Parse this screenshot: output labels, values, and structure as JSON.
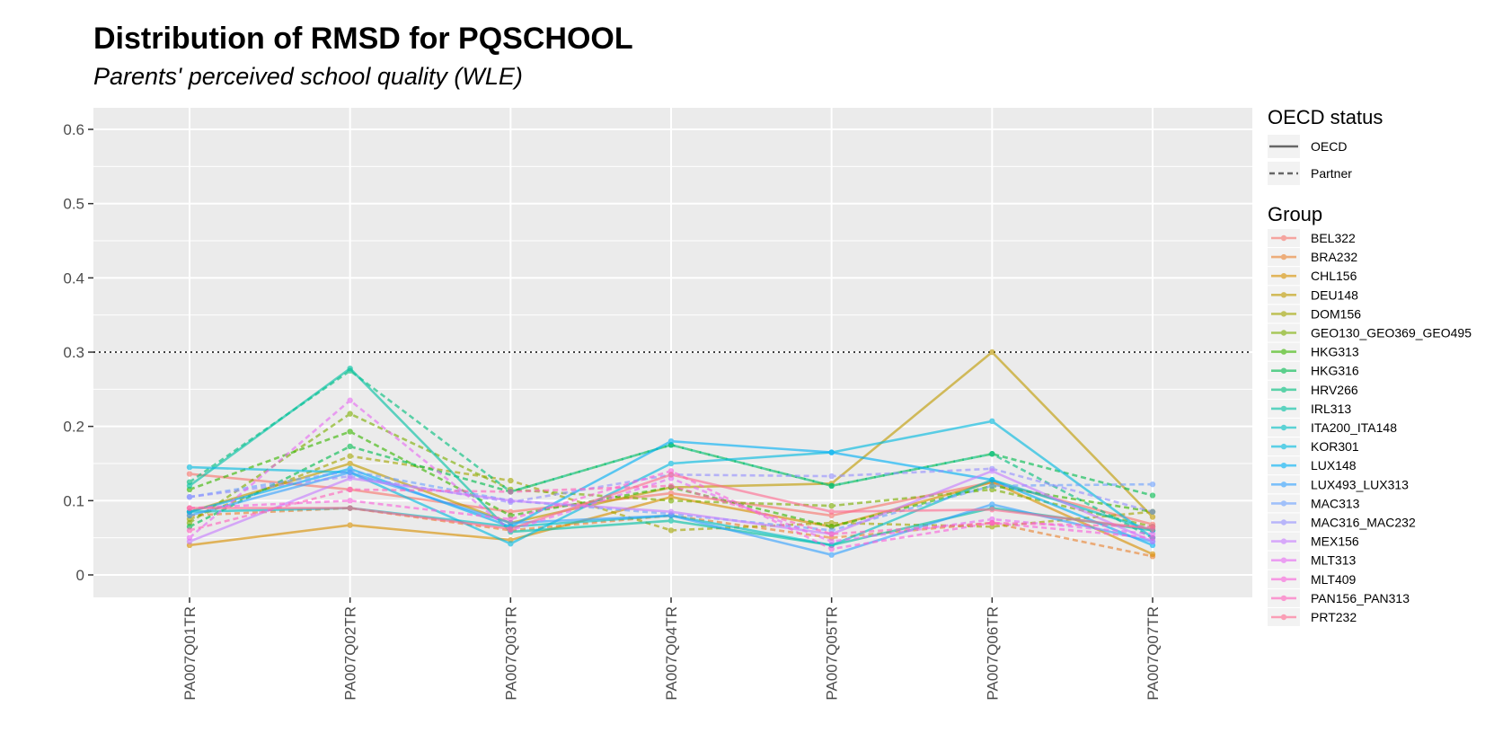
{
  "title": "Distribution of RMSD for PQSCHOOL",
  "subtitle": "Parents' perceived school quality (WLE)",
  "legend": {
    "status_title": "OECD status",
    "status_items": [
      {
        "label": "OECD",
        "dash": "solid"
      },
      {
        "label": "Partner",
        "dash": "dashed"
      }
    ],
    "group_title": "Group"
  },
  "chart_data": {
    "type": "line",
    "title": "Distribution of RMSD for PQSCHOOL",
    "subtitle": "Parents' perceived school quality (WLE)",
    "xlabel": "",
    "ylabel": "",
    "categories": [
      "PA007Q01TR",
      "PA007Q02TR",
      "PA007Q03TR",
      "PA007Q04TR",
      "PA007Q05TR",
      "PA007Q06TR",
      "PA007Q07TR"
    ],
    "ylim": [
      -0.03,
      0.63
    ],
    "yticks": [
      0,
      0.1,
      0.2,
      0.3,
      0.4,
      0.5,
      0.6
    ],
    "ytick_labels": [
      "0",
      "0.1",
      "0.2",
      "0.3",
      "0.4",
      "0.5",
      "0.6"
    ],
    "reference_line": {
      "y": 0.3,
      "style": "dotted"
    },
    "grid": true,
    "legend_position": "right",
    "series": [
      {
        "name": "BEL322",
        "status": "OECD",
        "color": "#F8766D",
        "values": [
          0.136,
          0.115,
          0.085,
          0.11,
          0.08,
          0.125,
          0.068
        ]
      },
      {
        "name": "BRA232",
        "status": "Partner",
        "color": "#EA8331",
        "values": [
          0.08,
          0.09,
          0.06,
          0.08,
          0.05,
          0.07,
          0.025
        ]
      },
      {
        "name": "CHL156",
        "status": "OECD",
        "color": "#D89000",
        "values": [
          0.04,
          0.067,
          0.047,
          0.105,
          0.065,
          0.125,
          0.028
        ]
      },
      {
        "name": "DEU148",
        "status": "OECD",
        "color": "#C09B00",
        "values": [
          0.085,
          0.15,
          0.07,
          0.118,
          0.123,
          0.3,
          0.078
        ]
      },
      {
        "name": "DOM156",
        "status": "Partner",
        "color": "#A3A500",
        "values": [
          0.075,
          0.16,
          0.127,
          0.06,
          0.07,
          0.065,
          0.085
        ]
      },
      {
        "name": "GEO130_GEO369_GEO495",
        "status": "Partner",
        "color": "#7CAE00",
        "values": [
          0.07,
          0.217,
          0.115,
          0.1,
          0.093,
          0.115,
          0.065
        ]
      },
      {
        "name": "HKG313",
        "status": "Partner",
        "color": "#39B600",
        "values": [
          0.115,
          0.193,
          0.08,
          0.118,
          0.065,
          0.12,
          0.085
        ]
      },
      {
        "name": "HKG316",
        "status": "Partner",
        "color": "#00BB4E",
        "values": [
          0.065,
          0.173,
          0.112,
          0.175,
          0.12,
          0.163,
          0.107
        ]
      },
      {
        "name": "HRV266",
        "status": "Partner",
        "color": "#00BF7D",
        "values": [
          0.125,
          0.275,
          0.112,
          0.175,
          0.12,
          0.163,
          0.05
        ]
      },
      {
        "name": "IRL313",
        "status": "OECD",
        "color": "#00C1A3",
        "values": [
          0.12,
          0.278,
          0.058,
          0.073,
          0.04,
          0.09,
          0.06
        ]
      },
      {
        "name": "ITA200_ITA148",
        "status": "OECD",
        "color": "#00BFC4",
        "values": [
          0.085,
          0.09,
          0.065,
          0.08,
          0.04,
          0.128,
          0.06
        ]
      },
      {
        "name": "KOR301",
        "status": "OECD",
        "color": "#00BAE0",
        "values": [
          0.145,
          0.138,
          0.042,
          0.15,
          0.165,
          0.207,
          0.05
        ]
      },
      {
        "name": "LUX148",
        "status": "OECD",
        "color": "#00B0F6",
        "values": [
          0.085,
          0.143,
          0.065,
          0.18,
          0.165,
          0.128,
          0.04
        ]
      },
      {
        "name": "LUX493_LUX313",
        "status": "OECD",
        "color": "#35A2FF",
        "values": [
          0.08,
          0.138,
          0.07,
          0.08,
          0.027,
          0.095,
          0.045
        ]
      },
      {
        "name": "MAC313",
        "status": "Partner",
        "color": "#6EA2FF",
        "values": [
          0.105,
          0.14,
          0.1,
          0.082,
          0.06,
          0.12,
          0.122
        ]
      },
      {
        "name": "MAC316_MAC232",
        "status": "Partner",
        "color": "#9590FF",
        "values": [
          0.105,
          0.133,
          0.098,
          0.135,
          0.133,
          0.143,
          0.085
        ]
      },
      {
        "name": "MEX156",
        "status": "OECD",
        "color": "#C77CFF",
        "values": [
          0.045,
          0.13,
          0.1,
          0.085,
          0.055,
          0.14,
          0.045
        ]
      },
      {
        "name": "MLT313",
        "status": "Partner",
        "color": "#E76BF3",
        "values": [
          0.05,
          0.235,
          0.06,
          0.13,
          0.045,
          0.075,
          0.055
        ]
      },
      {
        "name": "MLT409",
        "status": "Partner",
        "color": "#FA62DB",
        "values": [
          0.09,
          0.1,
          0.075,
          0.14,
          0.035,
          0.07,
          0.05
        ]
      },
      {
        "name": "PAN156_PAN313",
        "status": "Partner",
        "color": "#FF62BC",
        "values": [
          0.06,
          0.115,
          0.112,
          0.12,
          0.055,
          0.07,
          0.065
        ]
      },
      {
        "name": "PRT232",
        "status": "OECD",
        "color": "#FF6C91",
        "values": [
          0.09,
          0.09,
          0.062,
          0.135,
          0.085,
          0.088,
          0.062
        ]
      }
    ]
  }
}
